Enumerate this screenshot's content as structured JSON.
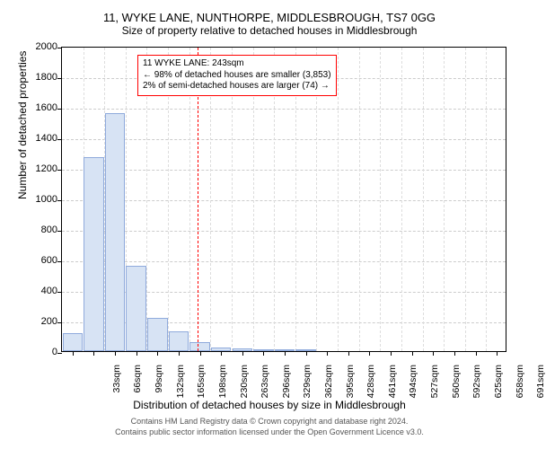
{
  "chart": {
    "type": "histogram",
    "title_line1": "11, WYKE LANE, NUNTHORPE, MIDDLESBROUGH, TS7 0GG",
    "title_line2": "Size of property relative to detached houses in Middlesbrough",
    "ylabel": "Number of detached properties",
    "xlabel": "Distribution of detached houses by size in Middlesbrough",
    "footer1": "Contains HM Land Registry data © Crown copyright and database right 2024.",
    "footer2": "Contains public sector information licensed under the Open Government Licence v3.0.",
    "ylim": [
      0,
      2000
    ],
    "ytick_step": 200,
    "yticks": [
      0,
      200,
      400,
      600,
      800,
      1000,
      1200,
      1400,
      1600,
      1800,
      2000
    ],
    "x_categories": [
      "33sqm",
      "66sqm",
      "99sqm",
      "132sqm",
      "165sqm",
      "198sqm",
      "230sqm",
      "263sqm",
      "296sqm",
      "329sqm",
      "362sqm",
      "395sqm",
      "428sqm",
      "461sqm",
      "494sqm",
      "527sqm",
      "560sqm",
      "592sqm",
      "625sqm",
      "658sqm",
      "691sqm"
    ],
    "bar_values": [
      120,
      1270,
      1560,
      560,
      220,
      130,
      60,
      25,
      15,
      10,
      10,
      5,
      0,
      0,
      0,
      0,
      0,
      0,
      0,
      0,
      0
    ],
    "bar_color": "#d7e3f4",
    "bar_border": "#8faadc",
    "grid_color": "#cccccc",
    "background_color": "#ffffff",
    "bar_width_ratio": 0.95,
    "reference_line": {
      "category_position": 6.4,
      "color": "#ff0000",
      "dash": true
    },
    "annotation": {
      "line1": "11 WYKE LANE: 243sqm",
      "line2": "← 98% of detached houses are smaller (3,853)",
      "line3": "2% of semi-detached houses are larger (74) →",
      "border_color": "#ff0000"
    }
  }
}
